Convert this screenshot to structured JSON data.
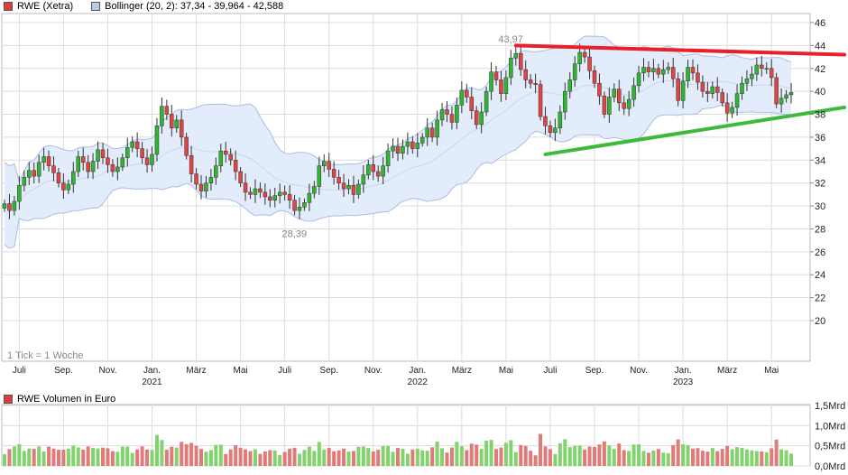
{
  "legend": {
    "price_label": "RWE (Xetra)",
    "price_color": "#e33b3b",
    "bollinger_label": "Bollinger (20, 2): 37,34 - 39,964 - 42,588",
    "bollinger_color": "#b9c9e8",
    "volume_label": "RWE Volumen in Euro",
    "volume_color": "#e33b3b"
  },
  "note": "1 Tick = 1 Woche",
  "colors": {
    "up": "#2fb52f",
    "down": "#e04444",
    "vol_up": "#82d26e",
    "vol_down": "#e27a7a",
    "band_fill": "#e3ecfb",
    "band_line": "#a8bde6",
    "resistance": "#e8202a",
    "support": "#3dba3d",
    "grid": "#dcdcdc"
  },
  "chart_data": [
    {
      "type": "candlestick",
      "title": "RWE (Xetra)",
      "ylim": [
        18,
        46
      ],
      "y_ticks": [
        "20",
        "22",
        "24",
        "26",
        "28",
        "30",
        "32",
        "34",
        "36",
        "38",
        "40",
        "42",
        "44",
        "46"
      ],
      "x_ticks": [
        {
          "t": 3,
          "label": "Juli"
        },
        {
          "t": 12,
          "label": "Sep."
        },
        {
          "t": 21,
          "label": "Nov."
        },
        {
          "t": 30,
          "label": "Jan."
        },
        {
          "t": 39,
          "label": "März"
        },
        {
          "t": 48,
          "label": "Mai"
        },
        {
          "t": 57,
          "label": "Juli"
        },
        {
          "t": 66,
          "label": "Sep."
        },
        {
          "t": 75,
          "label": "Nov."
        },
        {
          "t": 84,
          "label": "Jan."
        },
        {
          "t": 93,
          "label": "März"
        },
        {
          "t": 102,
          "label": "Mai"
        },
        {
          "t": 111,
          "label": "Juli"
        },
        {
          "t": 120,
          "label": "Sep."
        },
        {
          "t": 129,
          "label": "Nov."
        },
        {
          "t": 138,
          "label": "Jan."
        },
        {
          "t": 147,
          "label": "März"
        },
        {
          "t": 156,
          "label": "Mai"
        }
      ],
      "years": [
        {
          "t": 30,
          "label": "2021"
        },
        {
          "t": 84,
          "label": "2022"
        },
        {
          "t": 138,
          "label": "2023"
        }
      ],
      "close": [
        30.2,
        29.6,
        30.4,
        31.8,
        32.5,
        33.1,
        32.6,
        33.8,
        34.3,
        33.5,
        32.9,
        32.0,
        31.4,
        31.9,
        33.0,
        34.3,
        33.8,
        33.0,
        33.9,
        34.9,
        34.2,
        33.6,
        33.0,
        33.4,
        34.2,
        35.1,
        35.6,
        35.0,
        34.2,
        33.6,
        34.5,
        37.0,
        38.7,
        38.0,
        36.8,
        37.5,
        36.0,
        34.4,
        32.8,
        31.9,
        31.3,
        32.0,
        32.5,
        33.5,
        34.8,
        34.5,
        34.0,
        33.0,
        32.0,
        31.2,
        31.0,
        31.5,
        31.2,
        30.8,
        30.5,
        30.9,
        31.2,
        31.0,
        30.5,
        29.6,
        29.9,
        30.3,
        31.1,
        31.7,
        33.5,
        33.9,
        33.2,
        32.5,
        32.0,
        31.5,
        31.8,
        31.0,
        31.9,
        32.7,
        33.6,
        33.0,
        32.6,
        33.5,
        34.8,
        35.2,
        34.6,
        35.2,
        35.6,
        35.0,
        35.5,
        36.0,
        36.8,
        36.0,
        37.5,
        38.4,
        38.0,
        37.3,
        38.8,
        40.1,
        39.5,
        38.3,
        37.1,
        38.2,
        40.0,
        41.7,
        41.0,
        39.8,
        41.2,
        42.9,
        43.3,
        41.9,
        41.0,
        40.7,
        40.6,
        37.8,
        37.0,
        36.4,
        36.8,
        38.2,
        40.0,
        41.0,
        42.4,
        43.4,
        43.0,
        41.8,
        40.7,
        39.6,
        38.0,
        39.5,
        40.2,
        39.0,
        38.5,
        39.3,
        40.5,
        41.6,
        42.1,
        41.7,
        42.0,
        41.5,
        41.9,
        42.1,
        41.1,
        39.2,
        40.9,
        42.1,
        41.6,
        40.8,
        40.0,
        39.8,
        40.4,
        39.9,
        39.0,
        38.1,
        38.6,
        39.8,
        40.7,
        41.1,
        41.5,
        42.3,
        42.0,
        42.0,
        41.2,
        38.9,
        39.4,
        39.7,
        39.9
      ],
      "volume_ylim": [
        0,
        1.5
      ],
      "volume_ticks": [
        "0,0Mrd",
        "0,5Mrd",
        "1,0Mrd",
        "1,5Mrd"
      ],
      "annotations": [
        {
          "t": 103,
          "value": 43.97,
          "text": "43,97"
        },
        {
          "t": 59,
          "value": 28.39,
          "text": "28,39"
        }
      ]
    },
    {
      "type": "bar",
      "title": "RWE Volumen in Euro"
    }
  ]
}
